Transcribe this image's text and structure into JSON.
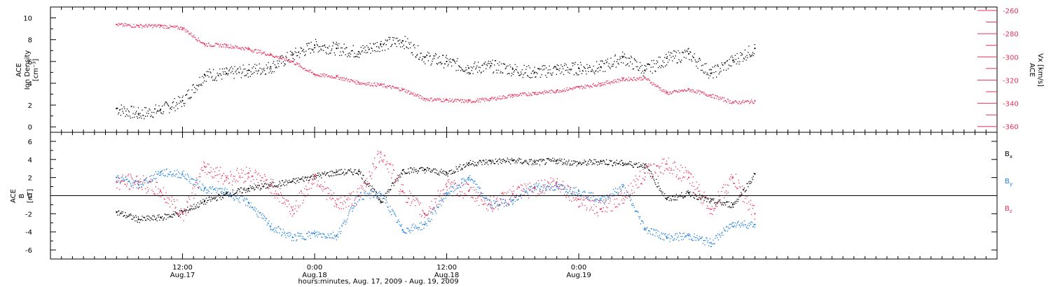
{
  "chart_data": [
    {
      "type": "scatter",
      "panel": "top",
      "ylabel_left": [
        "ACE",
        "Ion Density",
        "[cm⁻³]"
      ],
      "ylabel_right": [
        "ACE",
        "Vx [km/s]"
      ],
      "ylim_left": [
        -0.5,
        11
      ],
      "yticks_left": [
        0,
        2,
        4,
        6,
        8,
        10
      ],
      "ylim_right": [
        -365,
        -257
      ],
      "yticks_right": [
        -260,
        -280,
        -300,
        -320,
        -340,
        -360
      ],
      "colors": {
        "density": "#000000",
        "vx": "#e8325c"
      },
      "series": [
        {
          "name": "Ion Density",
          "axis": "left",
          "x": [
            0,
            2,
            4,
            6,
            8,
            10,
            12,
            14,
            16,
            18,
            20,
            22,
            24,
            26,
            28,
            30,
            32,
            34,
            36,
            38,
            40,
            42,
            44,
            46,
            48,
            50,
            52,
            54,
            56,
            58
          ],
          "values": [
            1.7,
            1.2,
            1.6,
            2.4,
            4.8,
            4.9,
            5.2,
            5.5,
            6.6,
            7.5,
            7.2,
            6.9,
            7.6,
            7.9,
            6.4,
            6.0,
            5.4,
            5.6,
            5.3,
            5.0,
            5.3,
            5.4,
            5.5,
            6.4,
            5.2,
            6.3,
            6.7,
            4.9,
            6.1,
            7.2
          ]
        },
        {
          "name": "Vx",
          "axis": "right",
          "x": [
            0,
            2,
            4,
            6,
            8,
            10,
            12,
            14,
            16,
            18,
            20,
            22,
            24,
            26,
            28,
            30,
            32,
            34,
            36,
            38,
            40,
            42,
            44,
            46,
            48,
            50,
            52,
            54,
            56,
            58
          ],
          "values": [
            -272,
            -273,
            -273,
            -275,
            -289,
            -290,
            -293,
            -298,
            -304,
            -315,
            -317,
            -322,
            -324,
            -328,
            -336,
            -337,
            -338,
            -336,
            -333,
            -331,
            -329,
            -326,
            -323,
            -319,
            -318,
            -331,
            -328,
            -333,
            -339,
            -338
          ]
        }
      ]
    },
    {
      "type": "scatter",
      "panel": "bottom",
      "ylabel_left": [
        "ACE",
        "B",
        "[nT]"
      ],
      "ylim_left": [
        -7,
        7
      ],
      "yticks_left": [
        -6,
        -4,
        -2,
        0,
        2,
        4,
        6
      ],
      "colors": {
        "Bx": "#000000",
        "By": "#1a7ee0",
        "Bz": "#e8325c"
      },
      "legend": {
        "placement": "right",
        "entries": [
          "Bx",
          "By",
          "Bz"
        ]
      },
      "series": [
        {
          "name": "Bx",
          "x": [
            0,
            2,
            4,
            6,
            8,
            10,
            12,
            14,
            16,
            18,
            20,
            22,
            24,
            26,
            28,
            30,
            32,
            34,
            36,
            38,
            40,
            42,
            44,
            46,
            48,
            50,
            52,
            54,
            56,
            58
          ],
          "values": [
            -1.8,
            -2.6,
            -2.4,
            -1.8,
            -0.6,
            0.2,
            0.8,
            1.2,
            1.6,
            2.2,
            2.6,
            2.7,
            -0.6,
            2.8,
            2.9,
            2.5,
            3.6,
            3.8,
            3.9,
            3.7,
            3.9,
            3.6,
            3.8,
            3.6,
            3.4,
            -0.4,
            0.3,
            -0.6,
            -1.0,
            2.4
          ]
        },
        {
          "name": "By",
          "x": [
            0,
            2,
            4,
            6,
            8,
            10,
            12,
            14,
            16,
            18,
            20,
            22,
            24,
            26,
            28,
            30,
            32,
            34,
            36,
            38,
            40,
            42,
            44,
            46,
            48,
            50,
            52,
            54,
            56,
            58
          ],
          "values": [
            2.0,
            1.2,
            2.6,
            2.4,
            0.8,
            0.4,
            -0.8,
            -3.4,
            -4.6,
            -4.2,
            -4.4,
            0.0,
            0.2,
            -3.8,
            -3.2,
            0.3,
            2.0,
            -1.0,
            -0.5,
            1.0,
            1.0,
            0.5,
            -0.5,
            1.0,
            -3.6,
            -4.6,
            -4.4,
            -5.2,
            -3.0,
            -3.2
          ]
        },
        {
          "name": "Bz",
          "x": [
            0,
            2,
            4,
            6,
            8,
            10,
            12,
            14,
            16,
            18,
            20,
            22,
            24,
            26,
            28,
            30,
            32,
            34,
            36,
            38,
            40,
            42,
            44,
            46,
            48,
            50,
            52,
            54,
            56,
            58
          ],
          "values": [
            1.5,
            1.6,
            0.5,
            -2.0,
            3.2,
            2.0,
            2.5,
            1.2,
            -1.6,
            2.2,
            -1.0,
            0.0,
            4.8,
            0.5,
            -2.0,
            1.0,
            0.5,
            -1.0,
            0.2,
            0.8,
            1.5,
            -0.4,
            -1.5,
            0.0,
            2.5,
            3.5,
            2.0,
            -1.5,
            2.0,
            -2.0
          ]
        }
      ]
    }
  ],
  "xaxis": {
    "title": "hours:minutes, Aug. 17, 2009 - Aug. 19, 2009",
    "xlim": [
      -6,
      80
    ],
    "major_ticks": [
      {
        "x": 6,
        "label1": "12:00",
        "label2": "Aug.17"
      },
      {
        "x": 18,
        "label1": "0:00",
        "label2": "Aug.18"
      },
      {
        "x": 30,
        "label1": "12:00",
        "label2": "Aug.18"
      },
      {
        "x": 42,
        "label1": "0:00",
        "label2": "Aug.19"
      }
    ],
    "minor_tick_step": 1
  },
  "legend_labels": {
    "bx": {
      "main": "B",
      "sub": "x"
    },
    "by": {
      "main": "B",
      "sub": "y"
    },
    "bz": {
      "main": "B",
      "sub": "z"
    }
  }
}
